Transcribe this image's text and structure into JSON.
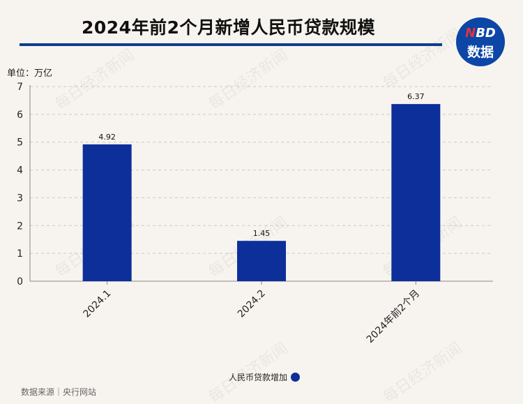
{
  "header": {
    "title": "2024年前2个月新增人民币贷款规模",
    "logo_line1_accent": "N",
    "logo_line1_rest": "BD",
    "logo_line2": "数据"
  },
  "unit_label": "单位：万亿",
  "source_text": "数据来源｜央行网站",
  "watermark_text": "每日经济新闻",
  "colors": {
    "bar": "#0c2f9a",
    "title_rule": "#0c3f8f",
    "logo_bg": "#0c46a6",
    "logo_accent": "#e4313a"
  },
  "chart_data": {
    "type": "bar",
    "categories": [
      "2024.1",
      "2024.2",
      "2024年前2个月"
    ],
    "series": [
      {
        "name": "人民币贷款增加",
        "values": [
          4.92,
          1.45,
          6.37
        ]
      }
    ],
    "data_labels": [
      "4.92",
      "1.45",
      "6.37"
    ],
    "y_ticks": [
      "0",
      "1",
      "2",
      "3",
      "4",
      "5",
      "6",
      "7"
    ],
    "ylim": [
      0,
      7
    ],
    "grid": true,
    "legend_position": "bottom"
  }
}
